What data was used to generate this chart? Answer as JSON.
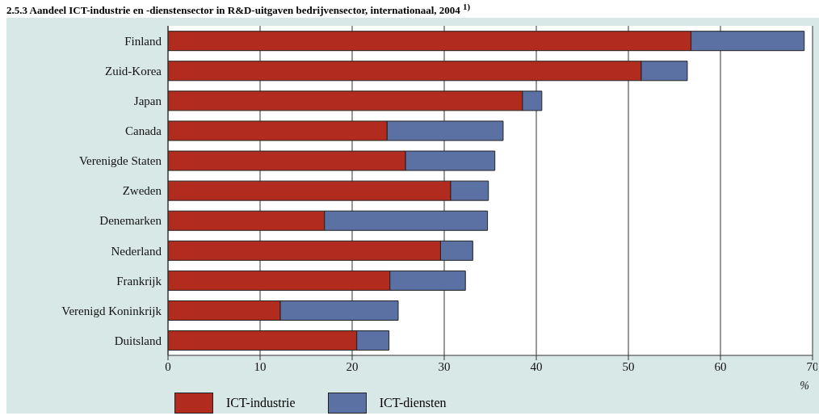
{
  "chart_data": {
    "type": "bar",
    "orientation": "horizontal",
    "stacked": true,
    "title": "2.5.3  Aandeel ICT-industrie en -dienstensector in R&D-uitgaven bedrijvensector, internationaal, 2004 $^{1)}$",
    "xlabel": "%",
    "categories": [
      "Finland",
      "Zuid-Korea",
      "Japan",
      "Canada",
      "Verenigde Staten",
      "Zweden",
      "Denemarken",
      "Nederland",
      "Frankrijk",
      "Verenigd Koninkrijk",
      "Duitsland"
    ],
    "series": [
      {
        "name": "ICT-industrie",
        "color": "#b12b1e",
        "values": [
          56.8,
          51.4,
          38.5,
          23.8,
          25.8,
          30.7,
          17.0,
          29.6,
          24.1,
          12.2,
          20.5
        ]
      },
      {
        "name": "ICT-diensten",
        "color": "#5b70a3",
        "values": [
          12.3,
          5.0,
          2.1,
          12.6,
          9.7,
          4.1,
          17.7,
          3.5,
          8.2,
          12.8,
          3.5
        ]
      }
    ],
    "xlim": [
      0,
      70
    ],
    "xticks": [
      0,
      10,
      20,
      30,
      40,
      50,
      60,
      70
    ],
    "grid": "x",
    "legend": "bottom"
  }
}
